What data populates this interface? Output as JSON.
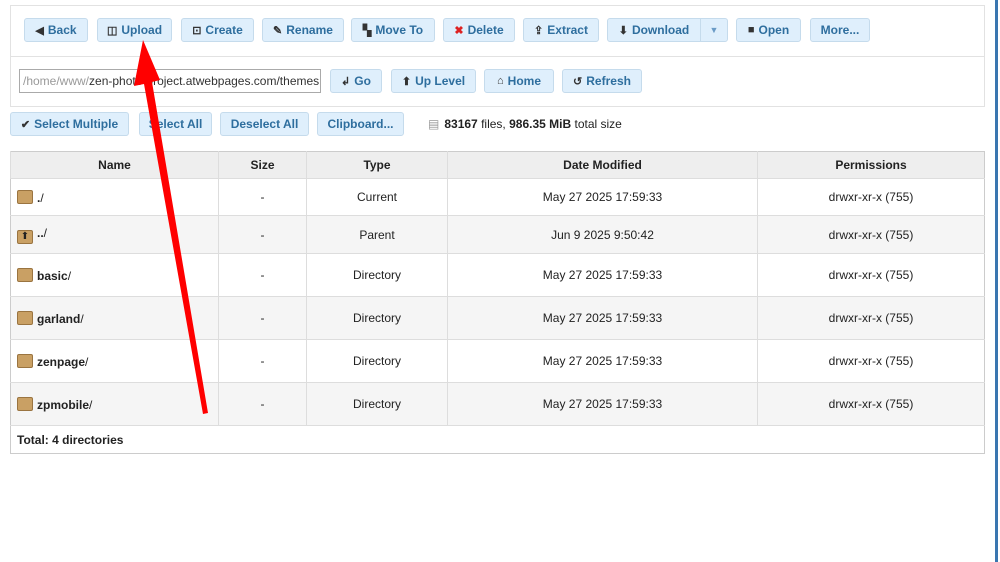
{
  "toolbar": {
    "back": "Back",
    "upload": "Upload",
    "create": "Create",
    "rename": "Rename",
    "move_to": "Move To",
    "delete": "Delete",
    "extract": "Extract",
    "download": "Download",
    "open": "Open",
    "more": "More..."
  },
  "path": {
    "prefix": "/home/www/",
    "value": "zen-photo-project.atwebpages.com/themes"
  },
  "nav": {
    "go": "Go",
    "up_level": "Up Level",
    "home": "Home",
    "refresh": "Refresh"
  },
  "selection": {
    "select_multiple": "Select Multiple",
    "select_all": "Select All",
    "deselect_all": "Deselect All",
    "clipboard": "Clipboard..."
  },
  "stats": {
    "files": "83167",
    "files_label": "files,",
    "size": "986.35 MiB",
    "size_label": "total size"
  },
  "table": {
    "headers": [
      "Name",
      "Size",
      "Type",
      "Date Modified",
      "Permissions"
    ],
    "rows": [
      {
        "name": ".",
        "suffix": "/",
        "size": "-",
        "type": "Current",
        "date": "May 27 2025 17:59:33",
        "perms": "drwxr-xr-x (755)",
        "icon": "folder-icon"
      },
      {
        "name": "..",
        "suffix": "/",
        "size": "-",
        "type": "Parent",
        "date": "Jun 9 2025 9:50:42",
        "perms": "drwxr-xr-x (755)",
        "icon": "parent-folder-icon"
      },
      {
        "name": "basic",
        "suffix": "/",
        "size": "-",
        "type": "Directory",
        "date": "May 27 2025 17:59:33",
        "perms": "drwxr-xr-x (755)",
        "icon": "folder-icon"
      },
      {
        "name": "garland",
        "suffix": "/",
        "size": "-",
        "type": "Directory",
        "date": "May 27 2025 17:59:33",
        "perms": "drwxr-xr-x (755)",
        "icon": "folder-icon"
      },
      {
        "name": "zenpage",
        "suffix": "/",
        "size": "-",
        "type": "Directory",
        "date": "May 27 2025 17:59:33",
        "perms": "drwxr-xr-x (755)",
        "icon": "folder-icon"
      },
      {
        "name": "zpmobile",
        "suffix": "/",
        "size": "-",
        "type": "Directory",
        "date": "May 27 2025 17:59:33",
        "perms": "drwxr-xr-x (755)",
        "icon": "folder-icon"
      }
    ],
    "footer": "Total: 4 directories"
  },
  "colors": {
    "button_bg": "#dfeffc",
    "button_text": "#2e6e9e",
    "annotation_arrow": "#ff0000"
  }
}
